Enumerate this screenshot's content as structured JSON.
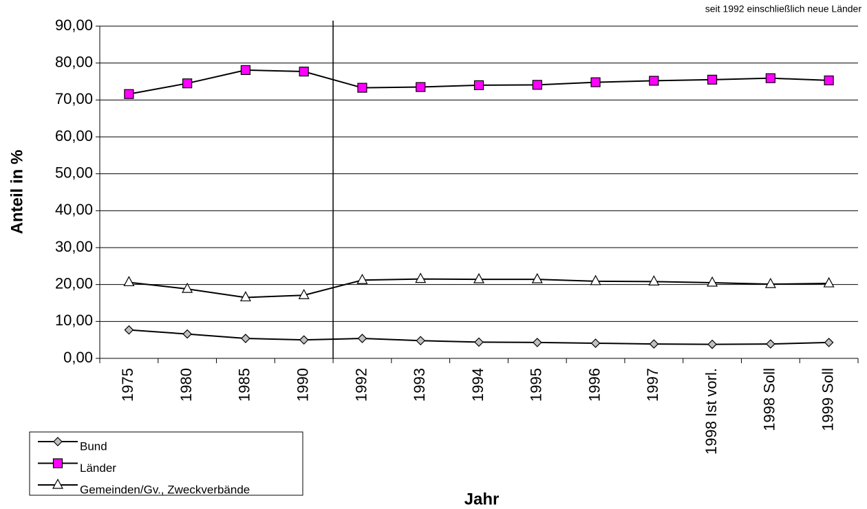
{
  "chart_data": {
    "type": "line",
    "annotation": "seit 1992 einschließlich neue Länder",
    "y_label": "Anteil in %",
    "x_label": "Jahr",
    "categories": [
      "1975",
      "1980",
      "1985",
      "1990",
      "1992",
      "1993",
      "1994",
      "1995",
      "1996",
      "1997",
      "1998 Ist vorl.",
      "1998 Soll",
      "1999 Soll"
    ],
    "divider_after": 3,
    "series": [
      {
        "name": "Bund",
        "color": "#c0c0c0",
        "marker": "diamond",
        "values": [
          7.7,
          6.6,
          5.4,
          5.0,
          5.4,
          4.8,
          4.4,
          4.3,
          4.1,
          3.9,
          3.8,
          3.9,
          4.3
        ]
      },
      {
        "name": "Länder",
        "color": "#ff00ff",
        "marker": "square",
        "values": [
          71.6,
          74.5,
          78.1,
          77.7,
          73.3,
          73.5,
          74.0,
          74.1,
          74.8,
          75.2,
          75.5,
          75.9,
          75.3
        ]
      },
      {
        "name": "Gemeinden/Gv., Zweckverbände",
        "color": "#ffffff",
        "marker": "triangle",
        "values": [
          20.6,
          18.8,
          16.5,
          17.1,
          21.2,
          21.5,
          21.4,
          21.4,
          20.9,
          20.8,
          20.5,
          20.1,
          20.3
        ]
      }
    ],
    "ylim": [
      0,
      90
    ],
    "yticks": [
      {
        "value": 0,
        "label": "0,00"
      },
      {
        "value": 10,
        "label": "10,00"
      },
      {
        "value": 20,
        "label": "20,00"
      },
      {
        "value": 30,
        "label": "30,00"
      },
      {
        "value": 40,
        "label": "40,00"
      },
      {
        "value": 50,
        "label": "50,00"
      },
      {
        "value": 60,
        "label": "60,00"
      },
      {
        "value": 70,
        "label": "70,00"
      },
      {
        "value": 80,
        "label": "80,00"
      },
      {
        "value": 90,
        "label": "90,00"
      }
    ],
    "grid": true
  }
}
